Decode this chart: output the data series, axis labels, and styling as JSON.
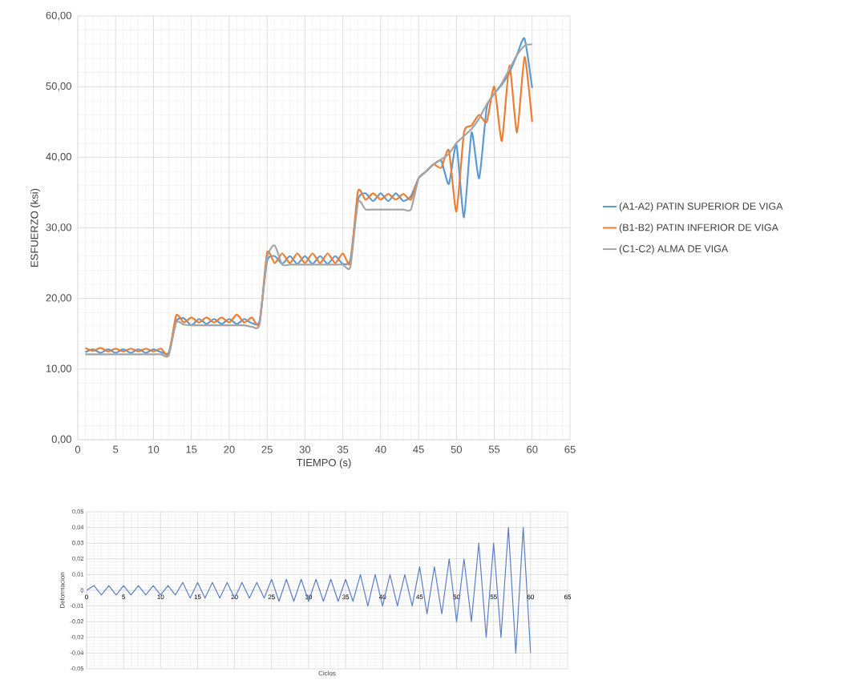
{
  "chart_data": [
    {
      "type": "line",
      "xlabel": "TIEMPO (s)",
      "ylabel": "ESFUERZO (ksi)",
      "x": [
        1,
        2,
        3,
        4,
        5,
        6,
        7,
        8,
        9,
        10,
        11,
        12,
        13,
        14,
        15,
        16,
        17,
        18,
        19,
        20,
        21,
        22,
        23,
        24,
        25,
        26,
        27,
        28,
        29,
        30,
        31,
        32,
        33,
        34,
        35,
        36,
        37,
        38,
        39,
        40,
        41,
        42,
        43,
        44,
        45,
        46,
        47,
        48,
        49,
        50,
        51,
        52,
        53,
        54,
        55,
        56,
        57,
        58,
        59,
        60
      ],
      "series": [
        {
          "name": "(A1-A2) PATIN SUPERIOR DE VIGA",
          "color": "#5b9bd5",
          "values": [
            12.4,
            12.8,
            12.3,
            12.8,
            12.3,
            12.8,
            12.3,
            12.8,
            12.3,
            12.8,
            12.4,
            12.3,
            16.8,
            17.2,
            16.2,
            17.1,
            16.4,
            17.1,
            16.4,
            17.1,
            16.4,
            17.1,
            16.5,
            16.8,
            25.3,
            26.0,
            24.9,
            26.0,
            24.9,
            26.0,
            24.9,
            26.0,
            24.9,
            26.0,
            24.9,
            25.5,
            34.0,
            34.9,
            33.8,
            34.9,
            33.8,
            34.9,
            33.8,
            34.5,
            37.0,
            38.0,
            39.0,
            39.5,
            36.2,
            41.8,
            31.5,
            43.5,
            37.0,
            47.0,
            49.0,
            50.3,
            52.0,
            54.5,
            56.8,
            49.8
          ]
        },
        {
          "name": "(B1-B2) PATIN INFERIOR DE VIGA",
          "color": "#ed7d31",
          "values": [
            13.0,
            12.6,
            13.0,
            12.5,
            12.9,
            12.5,
            12.9,
            12.5,
            12.9,
            12.5,
            12.9,
            12.0,
            17.6,
            16.6,
            17.3,
            16.6,
            17.3,
            16.6,
            17.3,
            16.6,
            17.7,
            16.6,
            17.3,
            16.4,
            26.5,
            25.0,
            26.4,
            25.0,
            26.4,
            25.0,
            26.4,
            25.0,
            26.4,
            25.0,
            26.4,
            25.0,
            35.2,
            34.0,
            34.9,
            34.0,
            34.8,
            34.0,
            34.8,
            34.0,
            37.0,
            38.0,
            39.0,
            38.5,
            41.0,
            32.3,
            43.5,
            44.5,
            46.0,
            45.0,
            50.0,
            42.3,
            53.0,
            43.5,
            54.2,
            45.0
          ]
        },
        {
          "name": "(C1-C2) ALMA DE VIGA",
          "color": "#a5a5a5",
          "values": [
            12.1,
            12.1,
            12.1,
            12.1,
            12.1,
            12.1,
            12.1,
            12.1,
            12.1,
            12.1,
            12.1,
            11.9,
            16.6,
            16.3,
            16.2,
            16.2,
            16.2,
            16.2,
            16.2,
            16.2,
            16.2,
            16.2,
            16.0,
            16.3,
            25.8,
            27.5,
            24.8,
            24.8,
            24.8,
            24.8,
            24.8,
            24.8,
            24.8,
            24.8,
            24.8,
            24.5,
            33.6,
            32.6,
            32.6,
            32.6,
            32.6,
            32.6,
            32.6,
            32.6,
            37.0,
            38.0,
            39.0,
            39.7,
            40.5,
            42.0,
            43.0,
            44.0,
            45.5,
            47.5,
            49.0,
            50.5,
            52.5,
            54.5,
            55.8,
            56.0
          ]
        }
      ],
      "xlim": [
        0,
        65
      ],
      "ylim": [
        0,
        60
      ],
      "xticks": [
        0,
        5,
        10,
        15,
        20,
        25,
        30,
        35,
        40,
        45,
        50,
        55,
        60,
        65
      ],
      "yticks": [
        {
          "value": 0,
          "label": "0,00"
        },
        {
          "value": 10,
          "label": "10,00"
        },
        {
          "value": 20,
          "label": "20,00"
        },
        {
          "value": 30,
          "label": "30,00"
        },
        {
          "value": 40,
          "label": "40,00"
        },
        {
          "value": 50,
          "label": "50,00"
        },
        {
          "value": 60,
          "label": "60,00"
        }
      ],
      "grid": true,
      "legend": "right"
    },
    {
      "type": "line",
      "xlabel": "Ciclos",
      "ylabel": "Deformacion",
      "x": [
        0,
        1,
        2,
        3,
        4,
        5,
        6,
        7,
        8,
        9,
        10,
        11,
        12,
        13,
        14,
        15,
        16,
        17,
        18,
        19,
        20,
        21,
        22,
        23,
        24,
        25,
        26,
        27,
        28,
        29,
        30,
        31,
        32,
        33,
        34,
        35,
        36,
        37,
        38,
        39,
        40,
        41,
        42,
        43,
        44,
        45,
        46,
        47,
        48,
        49,
        50,
        51,
        52,
        53,
        54,
        55,
        56,
        57,
        58,
        59,
        60
      ],
      "series": [
        {
          "color": "#5b7fc4",
          "values": [
            0,
            0.003,
            -0.003,
            0.003,
            -0.003,
            0.003,
            -0.003,
            0.003,
            -0.003,
            0.003,
            -0.003,
            0.003,
            -0.003,
            0.005,
            -0.005,
            0.005,
            -0.005,
            0.005,
            -0.005,
            0.005,
            -0.005,
            0.005,
            -0.005,
            0.005,
            -0.005,
            0.007,
            -0.007,
            0.007,
            -0.007,
            0.007,
            -0.007,
            0.007,
            -0.007,
            0.007,
            -0.007,
            0.007,
            -0.007,
            0.01,
            -0.01,
            0.01,
            -0.01,
            0.01,
            -0.01,
            0.01,
            -0.01,
            0.015,
            -0.015,
            0.015,
            -0.015,
            0.02,
            -0.02,
            0.02,
            -0.02,
            0.03,
            -0.03,
            0.03,
            -0.03,
            0.04,
            -0.04,
            0.04,
            -0.04
          ]
        }
      ],
      "xlim": [
        0,
        65
      ],
      "ylim": [
        -0.05,
        0.05
      ],
      "xticks": [
        0,
        5,
        10,
        15,
        20,
        25,
        30,
        35,
        40,
        45,
        50,
        55,
        60,
        65
      ],
      "yticks": [
        {
          "value": 0.05,
          "label": "0,05"
        },
        {
          "value": 0.04,
          "label": "0,04"
        },
        {
          "value": 0.03,
          "label": "0,03"
        },
        {
          "value": 0.02,
          "label": "0,02"
        },
        {
          "value": 0.01,
          "label": "0,01"
        },
        0,
        {
          "value": -0.01,
          "label": "-0,01"
        },
        {
          "value": -0.02,
          "label": "-0,02"
        },
        {
          "value": -0.03,
          "label": "-0,03"
        },
        {
          "value": -0.04,
          "label": "-0,04"
        },
        {
          "value": -0.05,
          "label": "-0,05"
        }
      ],
      "grid": true
    }
  ]
}
